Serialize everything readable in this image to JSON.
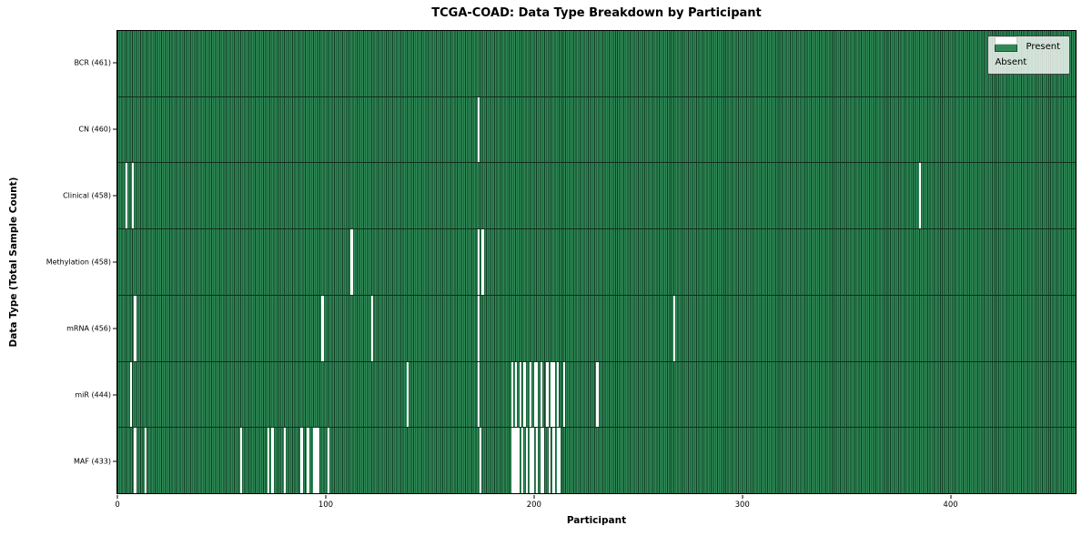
{
  "chart_data": {
    "type": "heatmap",
    "title": "TCGA-COAD: Data Type Breakdown by Participant",
    "xlabel": "Participant",
    "ylabel": "Data Type (Total Sample Count)",
    "x_ticks": [
      0,
      100,
      200,
      300,
      400
    ],
    "n_participants": 461,
    "grid": false,
    "legend_position": "upper right",
    "legend": [
      {
        "label": "Present",
        "color": "#2e8b57"
      },
      {
        "label": "Absent",
        "color": "#ffffff"
      }
    ],
    "rows": [
      {
        "label": "BCR (461)",
        "data_type": "BCR",
        "total": 461,
        "absent_participants": []
      },
      {
        "label": "CN (460)",
        "data_type": "CN",
        "total": 460,
        "absent_participants": [
          173
        ]
      },
      {
        "label": "Clinical (458)",
        "data_type": "Clinical",
        "total": 458,
        "absent_participants": [
          4,
          7,
          385
        ]
      },
      {
        "label": "Methylation (458)",
        "data_type": "Methylation",
        "total": 458,
        "absent_participants": [
          112,
          173,
          175
        ]
      },
      {
        "label": "mRNA (456)",
        "data_type": "mRNA",
        "total": 456,
        "absent_participants": [
          8,
          98,
          122,
          173,
          267
        ]
      },
      {
        "label": "miR (444)",
        "data_type": "miR",
        "total": 444,
        "absent_participants": [
          6,
          139,
          173,
          189,
          191,
          193,
          195,
          198,
          200,
          201,
          203,
          206,
          208,
          209,
          211,
          214,
          230
        ]
      },
      {
        "label": "MAF (433)",
        "data_type": "MAF",
        "total": 433,
        "absent_participants": [
          8,
          13,
          59,
          72,
          74,
          80,
          88,
          91,
          94,
          95,
          96,
          101,
          174,
          189,
          190,
          191,
          192,
          194,
          196,
          198,
          199,
          201,
          203,
          204,
          207,
          209,
          211,
          212
        ]
      }
    ],
    "colors": {
      "present_fill": "#2e8b57",
      "bar_edge": "#133d26",
      "absent_fill": "#ffffff",
      "axis": "#000000",
      "legend_border": "#424242"
    }
  }
}
